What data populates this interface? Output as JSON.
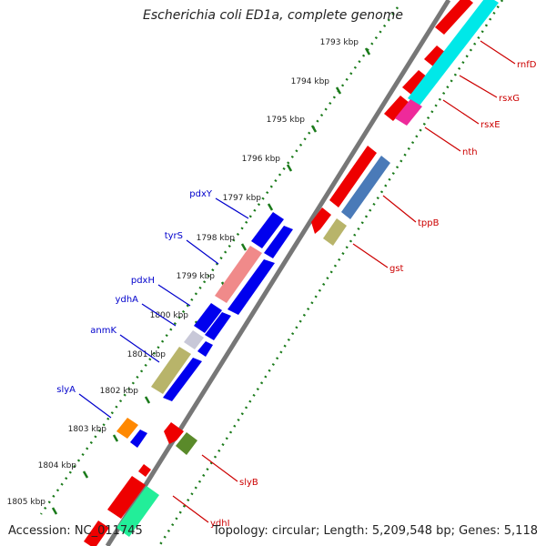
{
  "title": "Escherichia coli ED1a, complete genome",
  "footer": {
    "accession": "Accession: NC_011745",
    "summary": "Topology: circular; Length: 5,209,548 bp; Genes: 5,118"
  },
  "ticks": [
    "1793 kbp",
    "1794 kbp",
    "1795 kbp",
    "1796 kbp",
    "1797 kbp",
    "1798 kbp",
    "1799 kbp",
    "1800 kbp",
    "1801 kbp",
    "1802 kbp",
    "1803 kbp",
    "1804 kbp",
    "1805 kbp"
  ],
  "genes_left": [
    {
      "label": "pdxY",
      "color": "#0000cc"
    },
    {
      "label": "tyrS",
      "color": "#0000cc"
    },
    {
      "label": "pdxH",
      "color": "#0000cc"
    },
    {
      "label": "ydhA",
      "color": "#0000cc"
    },
    {
      "label": "anmK",
      "color": "#0000cc"
    },
    {
      "label": "slyA",
      "color": "#0000cc"
    }
  ],
  "genes_right": [
    {
      "label": "rnfD",
      "color": "#cc0000"
    },
    {
      "label": "rsxG",
      "color": "#cc0000"
    },
    {
      "label": "rsxE",
      "color": "#cc0000"
    },
    {
      "label": "nth",
      "color": "#cc0000"
    },
    {
      "label": "tppB",
      "color": "#cc0000"
    },
    {
      "label": "gst",
      "color": "#cc0000"
    },
    {
      "label": "slyB",
      "color": "#cc0000"
    },
    {
      "label": "ydhI",
      "color": "#cc0000"
    }
  ],
  "colors": {
    "forward_cds": "#0000ee",
    "reverse_cds": "#ee0000",
    "backbone": "#777777",
    "tick_line": "#1a7a1a",
    "cyan": "#00e8e8",
    "magenta": "#ee2a9a",
    "steelblue": "#4a7ab8",
    "khaki": "#b8b46a",
    "salmon": "#f08a8a",
    "silver": "#c8c8d8",
    "orange": "#ff8800",
    "olive": "#5a8a2a",
    "mint": "#22ee99"
  }
}
